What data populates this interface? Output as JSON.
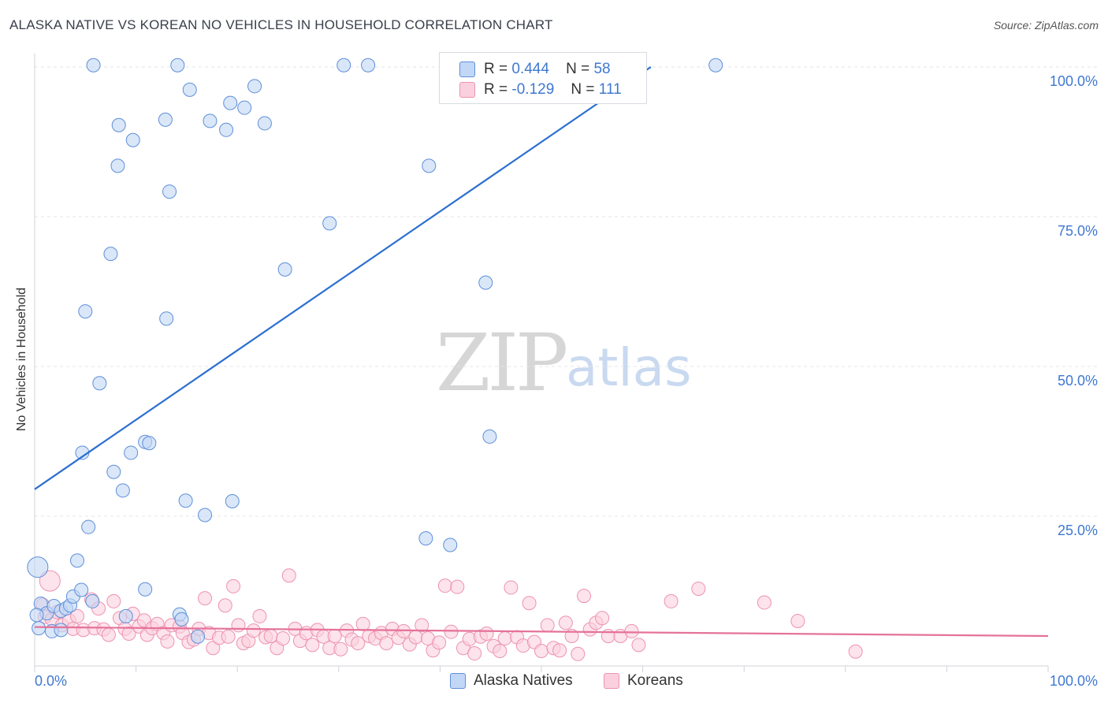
{
  "header": {
    "title": "ALASKA NATIVE VS KOREAN NO VEHICLES IN HOUSEHOLD CORRELATION CHART",
    "source": "Source: ZipAtlas.com"
  },
  "watermark": {
    "zip": "ZIP",
    "atlas": "atlas"
  },
  "legend": {
    "r_label": "R =",
    "n_label": "N =",
    "series": [
      {
        "r": "0.444",
        "n": "58"
      },
      {
        "r": "-0.129",
        "n": "111"
      }
    ]
  },
  "bottom_legend": [
    "Alaska Natives",
    "Koreans"
  ],
  "colors": {
    "blue_fill": "#c2d7f5",
    "blue_stroke": "#5e8fd8",
    "blue_line": "#2b6fd0",
    "pink_fill": "#fbd0de",
    "pink_stroke": "#ec93b0",
    "pink_line": "#e5729a",
    "grid": "#e3e6ea",
    "tick_text": "#3f78d1"
  },
  "chart_data": {
    "type": "scatter",
    "title": "ALASKA NATIVE VS KOREAN NO VEHICLES IN HOUSEHOLD CORRELATION CHART",
    "xlabel": "",
    "ylabel": "No Vehicles in Household",
    "xlim": [
      0,
      100
    ],
    "ylim": [
      0,
      103
    ],
    "x_tick_labels": [
      "0.0%",
      "100.0%"
    ],
    "y_ticks": [
      25,
      50,
      75,
      100
    ],
    "y_tick_labels": [
      "25.0%",
      "50.0%",
      "75.0%",
      "100.0%"
    ],
    "grid": true,
    "legend_position": "top-center",
    "series": [
      {
        "name": "Alaska Natives",
        "r": 0.444,
        "n": 58,
        "trend": {
          "x": [
            0,
            60.8
          ],
          "y": [
            29.5,
            100
          ]
        },
        "points": [
          [
            0.3,
            16.5
          ],
          [
            0.4,
            6.3
          ],
          [
            0.6,
            10.4
          ],
          [
            1.2,
            8.8
          ],
          [
            1.7,
            5.8
          ],
          [
            1.9,
            10.0
          ],
          [
            2.6,
            6.0
          ],
          [
            2.6,
            9.2
          ],
          [
            3.1,
            9.6
          ],
          [
            3.5,
            10.1
          ],
          [
            3.8,
            11.6
          ],
          [
            4.2,
            17.6
          ],
          [
            4.6,
            12.7
          ],
          [
            4.7,
            35.6
          ],
          [
            5.3,
            23.2
          ],
          [
            5.7,
            10.8
          ],
          [
            5.0,
            59.2
          ],
          [
            5.8,
            100.3
          ],
          [
            6.4,
            47.2
          ],
          [
            7.5,
            68.8
          ],
          [
            7.8,
            32.4
          ],
          [
            8.2,
            83.5
          ],
          [
            8.3,
            90.3
          ],
          [
            8.7,
            29.3
          ],
          [
            9.0,
            8.3
          ],
          [
            9.5,
            35.6
          ],
          [
            9.7,
            87.8
          ],
          [
            10.9,
            37.4
          ],
          [
            10.9,
            12.8
          ],
          [
            11.3,
            37.2
          ],
          [
            12.9,
            91.2
          ],
          [
            13.0,
            58.0
          ],
          [
            13.3,
            79.2
          ],
          [
            14.1,
            100.3
          ],
          [
            14.3,
            8.6
          ],
          [
            14.5,
            7.8
          ],
          [
            14.9,
            27.6
          ],
          [
            15.3,
            96.2
          ],
          [
            16.1,
            4.9
          ],
          [
            16.8,
            25.2
          ],
          [
            17.3,
            91.0
          ],
          [
            18.9,
            89.5
          ],
          [
            19.3,
            94.0
          ],
          [
            19.5,
            27.5
          ],
          [
            20.7,
            93.2
          ],
          [
            21.7,
            96.8
          ],
          [
            22.7,
            90.6
          ],
          [
            24.7,
            66.2
          ],
          [
            29.1,
            73.9
          ],
          [
            30.5,
            100.3
          ],
          [
            32.9,
            100.3
          ],
          [
            38.6,
            21.3
          ],
          [
            38.9,
            83.5
          ],
          [
            41.0,
            20.2
          ],
          [
            44.5,
            64.0
          ],
          [
            44.9,
            38.3
          ],
          [
            67.2,
            100.3
          ],
          [
            0.2,
            8.5
          ]
        ]
      },
      {
        "name": "Koreans",
        "r": -0.129,
        "n": 111,
        "trend": {
          "x": [
            0,
            100
          ],
          "y": [
            6.5,
            5.0
          ]
        },
        "points": [
          [
            0.8,
            10.2
          ],
          [
            1.0,
            8.2
          ],
          [
            1.5,
            14.2
          ],
          [
            1.7,
            7.8
          ],
          [
            2.2,
            9.0
          ],
          [
            2.7,
            6.8
          ],
          [
            3.4,
            7.6
          ],
          [
            3.8,
            6.2
          ],
          [
            4.2,
            8.3
          ],
          [
            4.8,
            6.0
          ],
          [
            5.6,
            11.1
          ],
          [
            5.9,
            6.3
          ],
          [
            6.3,
            9.6
          ],
          [
            6.8,
            6.1
          ],
          [
            7.3,
            5.2
          ],
          [
            7.8,
            10.8
          ],
          [
            8.4,
            8.0
          ],
          [
            8.9,
            6.2
          ],
          [
            9.3,
            5.4
          ],
          [
            9.7,
            8.7
          ],
          [
            10.3,
            6.6
          ],
          [
            10.8,
            7.6
          ],
          [
            11.1,
            5.2
          ],
          [
            11.6,
            6.3
          ],
          [
            12.1,
            7.0
          ],
          [
            12.7,
            5.5
          ],
          [
            13.1,
            4.1
          ],
          [
            13.5,
            6.8
          ],
          [
            14.3,
            6.6
          ],
          [
            14.6,
            5.5
          ],
          [
            15.2,
            4.0
          ],
          [
            15.7,
            4.4
          ],
          [
            16.2,
            6.2
          ],
          [
            16.8,
            11.3
          ],
          [
            17.2,
            5.5
          ],
          [
            17.6,
            3.0
          ],
          [
            18.2,
            4.7
          ],
          [
            18.8,
            10.1
          ],
          [
            19.1,
            4.9
          ],
          [
            19.6,
            13.3
          ],
          [
            20.1,
            6.8
          ],
          [
            20.6,
            3.8
          ],
          [
            21.1,
            4.2
          ],
          [
            21.6,
            5.9
          ],
          [
            22.2,
            8.3
          ],
          [
            22.8,
            4.8
          ],
          [
            23.3,
            5.0
          ],
          [
            23.9,
            3.0
          ],
          [
            24.5,
            4.6
          ],
          [
            25.1,
            15.1
          ],
          [
            25.7,
            6.2
          ],
          [
            26.2,
            4.2
          ],
          [
            26.8,
            5.5
          ],
          [
            27.4,
            3.5
          ],
          [
            27.9,
            6.0
          ],
          [
            28.5,
            4.9
          ],
          [
            29.1,
            3.0
          ],
          [
            29.6,
            5.0
          ],
          [
            30.2,
            2.8
          ],
          [
            30.8,
            5.9
          ],
          [
            31.3,
            4.4
          ],
          [
            31.9,
            3.8
          ],
          [
            32.4,
            7.0
          ],
          [
            33.0,
            5.0
          ],
          [
            33.6,
            4.6
          ],
          [
            34.2,
            5.5
          ],
          [
            34.7,
            3.8
          ],
          [
            35.3,
            6.2
          ],
          [
            35.9,
            4.7
          ],
          [
            36.4,
            5.8
          ],
          [
            37.0,
            3.6
          ],
          [
            37.6,
            4.8
          ],
          [
            38.2,
            6.8
          ],
          [
            38.8,
            4.6
          ],
          [
            39.3,
            2.6
          ],
          [
            39.9,
            3.9
          ],
          [
            40.5,
            13.4
          ],
          [
            41.1,
            5.7
          ],
          [
            41.7,
            13.2
          ],
          [
            42.3,
            3.0
          ],
          [
            42.9,
            4.5
          ],
          [
            43.4,
            2.1
          ],
          [
            44.0,
            4.9
          ],
          [
            44.6,
            5.4
          ],
          [
            45.3,
            3.3
          ],
          [
            45.9,
            2.5
          ],
          [
            46.4,
            4.6
          ],
          [
            47.0,
            13.1
          ],
          [
            47.6,
            4.8
          ],
          [
            48.2,
            3.4
          ],
          [
            48.8,
            10.5
          ],
          [
            49.3,
            4.0
          ],
          [
            50.0,
            2.5
          ],
          [
            50.6,
            6.8
          ],
          [
            51.2,
            3.0
          ],
          [
            51.8,
            2.6
          ],
          [
            52.4,
            7.2
          ],
          [
            53.0,
            5.0
          ],
          [
            53.6,
            2.0
          ],
          [
            54.2,
            11.7
          ],
          [
            54.8,
            6.1
          ],
          [
            55.4,
            7.2
          ],
          [
            56.0,
            8.0
          ],
          [
            56.6,
            5.0
          ],
          [
            57.8,
            5.0
          ],
          [
            58.9,
            5.8
          ],
          [
            59.6,
            3.5
          ],
          [
            62.8,
            10.8
          ],
          [
            65.5,
            12.9
          ],
          [
            72.0,
            10.6
          ],
          [
            75.3,
            7.5
          ],
          [
            81.0,
            2.4
          ]
        ]
      }
    ]
  }
}
